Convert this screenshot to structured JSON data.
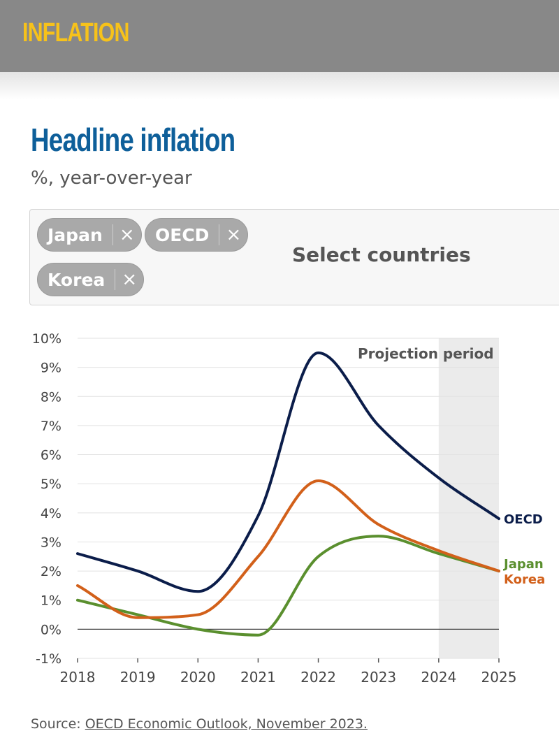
{
  "header": {
    "title": "INFLATION"
  },
  "chart_header": {
    "title": "Headline inflation",
    "subtitle": "%, year-over-year"
  },
  "country_selector": {
    "chips": [
      {
        "label": "Japan",
        "remove": "×"
      },
      {
        "label": "OECD",
        "remove": "×"
      },
      {
        "label": "Korea",
        "remove": "×"
      }
    ],
    "placeholder": "Select countries"
  },
  "source": {
    "label": "Source:",
    "link_text": "OECD Economic Outlook, November 2023."
  },
  "chart_data": {
    "type": "line",
    "x": [
      2018,
      2019,
      2020,
      2021,
      2022,
      2023,
      2024,
      2025
    ],
    "x_tick_labels": [
      "2018",
      "2019",
      "2020",
      "2021",
      "2022",
      "2023",
      "2024",
      "2025"
    ],
    "ylim": [
      -1,
      10
    ],
    "y_ticks": [
      -1,
      0,
      1,
      2,
      3,
      4,
      5,
      6,
      7,
      8,
      9,
      10
    ],
    "y_tick_labels": [
      "-1%",
      "0%",
      "1%",
      "2%",
      "3%",
      "4%",
      "5%",
      "6%",
      "7%",
      "8%",
      "9%",
      "10%"
    ],
    "grid": true,
    "projection": {
      "start": 2024,
      "end": 2025,
      "label": "Projection period"
    },
    "series": [
      {
        "name": "OECD",
        "color": "#0b1d4a",
        "values": [
          2.6,
          2.0,
          1.3,
          3.9,
          9.5,
          7.0,
          5.2,
          3.8
        ]
      },
      {
        "name": "Korea",
        "color": "#d2601a",
        "values": [
          1.5,
          0.4,
          0.5,
          2.5,
          5.1,
          3.6,
          2.7,
          2.0
        ]
      },
      {
        "name": "Japan",
        "color": "#5a8f2e",
        "values": [
          1.0,
          0.5,
          0.0,
          -0.2,
          2.5,
          3.2,
          2.6,
          2.0
        ]
      }
    ]
  }
}
